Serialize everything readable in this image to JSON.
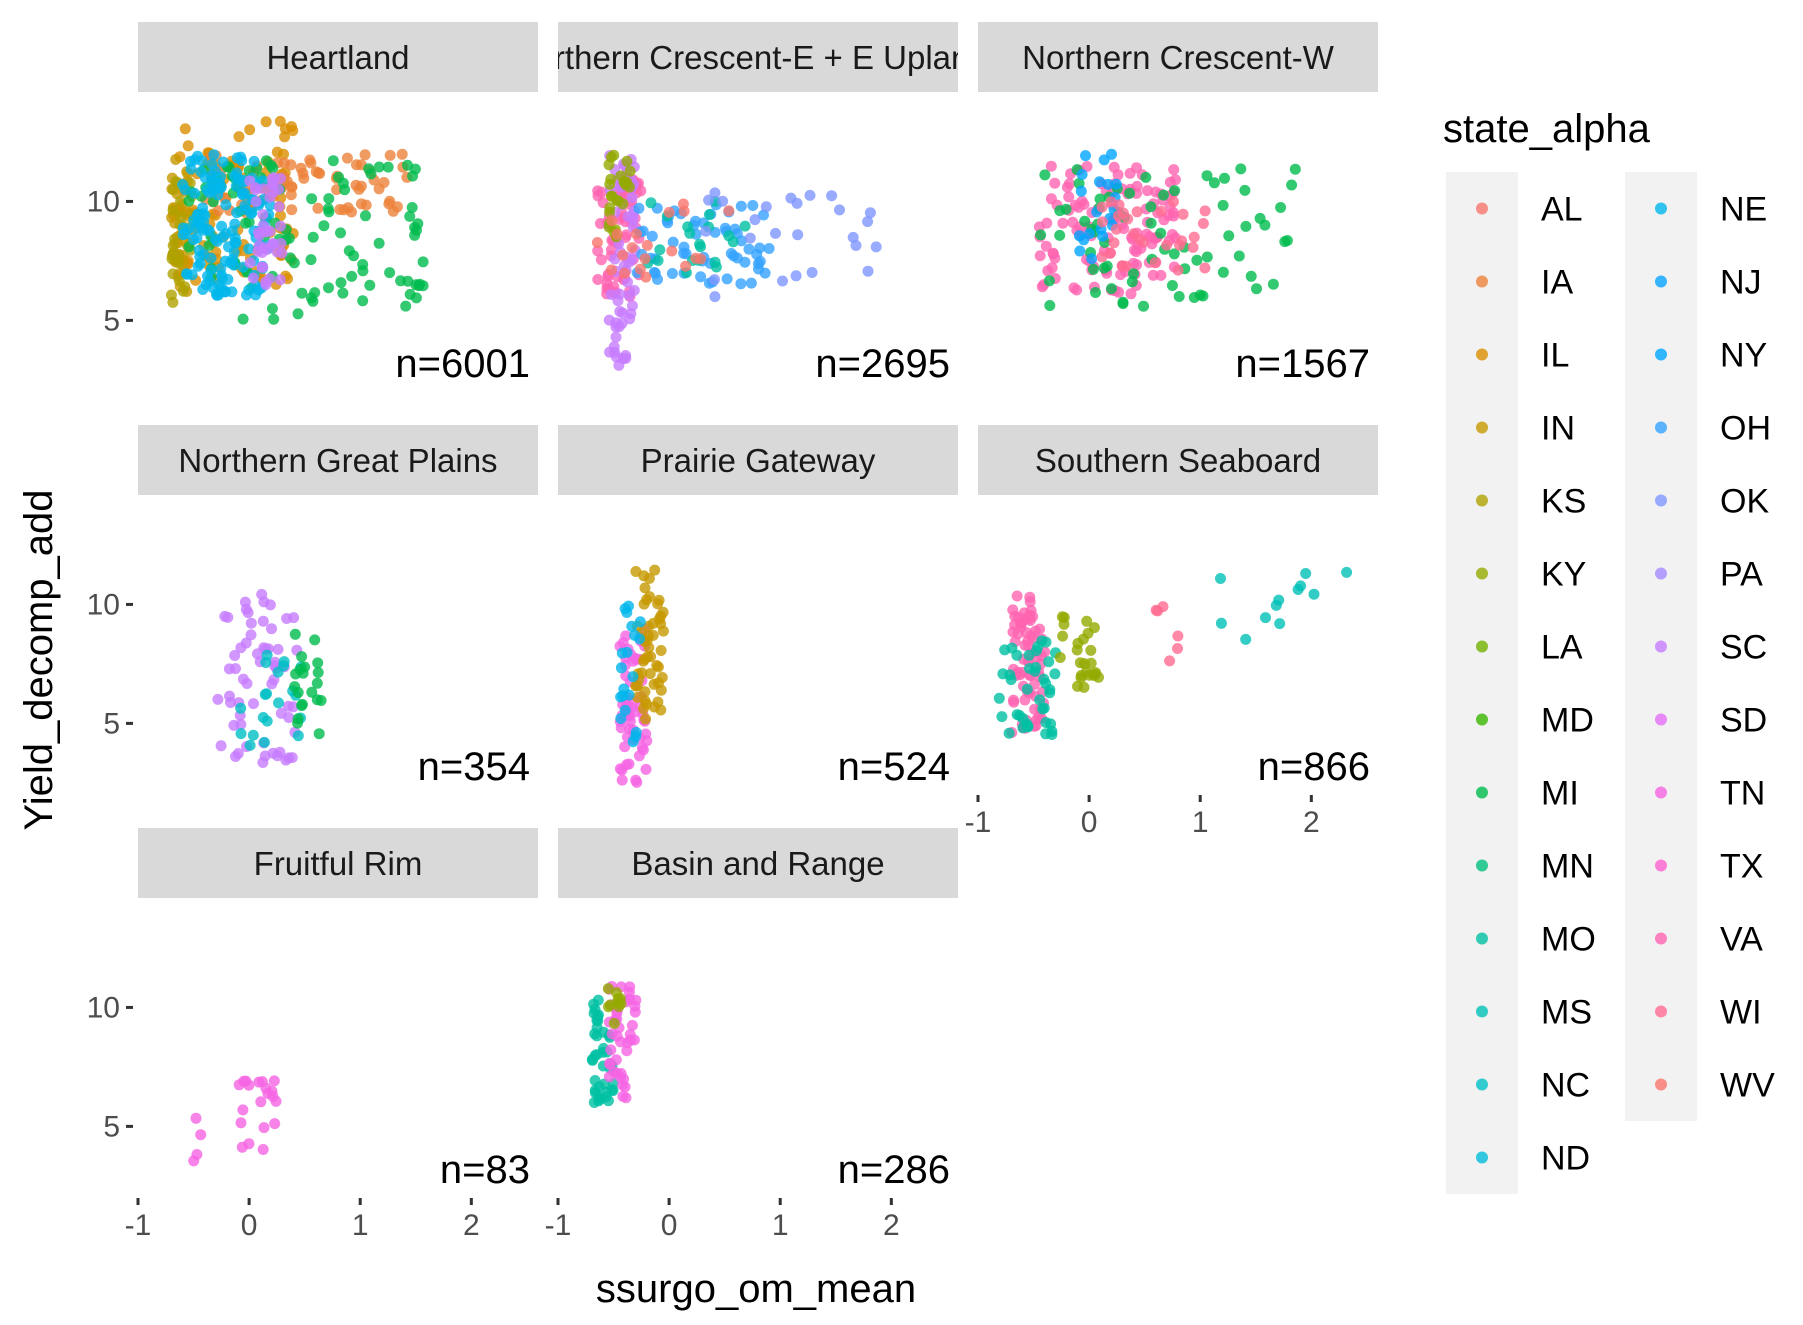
{
  "chart_data": {
    "type": "scatter",
    "xlabel": "ssurgo_om_mean",
    "ylabel": "Yield_decomp_add",
    "xlim": [
      -1,
      2.6
    ],
    "ylim": [
      2.2,
      14.6
    ],
    "x_ticks": [
      -1,
      0,
      1,
      2
    ],
    "y_ticks": [
      5,
      10
    ],
    "grid": false,
    "legend": {
      "title": "state_alpha",
      "position": "right",
      "entries": [
        {
          "name": "AL",
          "color": "#F8766D"
        },
        {
          "name": "IA",
          "color": "#EC8239"
        },
        {
          "name": "IL",
          "color": "#DB8E00"
        },
        {
          "name": "IN",
          "color": "#C79800"
        },
        {
          "name": "KS",
          "color": "#AFA100"
        },
        {
          "name": "KY",
          "color": "#93AA00"
        },
        {
          "name": "LA",
          "color": "#72B000"
        },
        {
          "name": "MD",
          "color": "#39B600"
        },
        {
          "name": "MI",
          "color": "#00BB4E"
        },
        {
          "name": "MN",
          "color": "#00BF7D"
        },
        {
          "name": "MO",
          "color": "#00C1A3"
        },
        {
          "name": "MS",
          "color": "#00C0B8"
        },
        {
          "name": "NC",
          "color": "#00BFC4"
        },
        {
          "name": "ND",
          "color": "#00BCD8"
        },
        {
          "name": "NE",
          "color": "#00B6EB"
        },
        {
          "name": "NJ",
          "color": "#06A4FF"
        },
        {
          "name": "NY",
          "color": "#00A5FF"
        },
        {
          "name": "OH",
          "color": "#35A2FF"
        },
        {
          "name": "OK",
          "color": "#7E96FF"
        },
        {
          "name": "PA",
          "color": "#A58AFF"
        },
        {
          "name": "SC",
          "color": "#C77CFF"
        },
        {
          "name": "SD",
          "color": "#E36EF6"
        },
        {
          "name": "TN",
          "color": "#F564E3"
        },
        {
          "name": "TX",
          "color": "#FD61D1"
        },
        {
          "name": "VA",
          "color": "#FF64B0"
        },
        {
          "name": "WI",
          "color": "#FF6C91"
        },
        {
          "name": "WV",
          "color": "#F8766D"
        }
      ]
    },
    "facets": [
      {
        "title": "Heartland",
        "n_label": "n=6001",
        "clusters": [
          {
            "color": "#DB8E00",
            "x": [
              -0.65,
              0.4
            ],
            "y": [
              6.5,
              13.5
            ],
            "count": 110
          },
          {
            "color": "#EC8239",
            "x": [
              -0.4,
              1.5
            ],
            "y": [
              9.5,
              12
            ],
            "count": 70
          },
          {
            "color": "#C79800",
            "x": [
              -0.7,
              -0.55
            ],
            "y": [
              6,
              12
            ],
            "count": 40
          },
          {
            "color": "#AFA100",
            "x": [
              -0.7,
              -0.5
            ],
            "y": [
              5.5,
              11
            ],
            "count": 25
          },
          {
            "color": "#00BB4E",
            "x": [
              -0.55,
              1.6
            ],
            "y": [
              5,
              12
            ],
            "count": 100
          },
          {
            "color": "#00B6EB",
            "x": [
              -0.6,
              0.2
            ],
            "y": [
              6,
              12
            ],
            "count": 140
          },
          {
            "color": "#C77CFF",
            "x": [
              0.0,
              0.3
            ],
            "y": [
              6.5,
              11
            ],
            "count": 40
          }
        ]
      },
      {
        "title": "Northern Crescent-E + E Uplands",
        "n_label": "n=2695",
        "clusters": [
          {
            "color": "#FF64B0",
            "x": [
              -0.65,
              -0.25
            ],
            "y": [
              6,
              11
            ],
            "count": 60
          },
          {
            "color": "#C77CFF",
            "x": [
              -0.55,
              -0.3
            ],
            "y": [
              3,
              12
            ],
            "count": 60
          },
          {
            "color": "#93AA00",
            "x": [
              -0.55,
              -0.35
            ],
            "y": [
              8.5,
              12
            ],
            "count": 25
          },
          {
            "color": "#35A2FF",
            "x": [
              -0.3,
              0.9
            ],
            "y": [
              6.5,
              10
            ],
            "count": 60
          },
          {
            "color": "#00C1A3",
            "x": [
              -0.2,
              0.7
            ],
            "y": [
              7,
              10
            ],
            "count": 20
          },
          {
            "color": "#7E96FF",
            "x": [
              0.3,
              1.9
            ],
            "y": [
              6,
              10.5
            ],
            "count": 25
          },
          {
            "color": "#F8766D",
            "x": [
              -0.65,
              0.6
            ],
            "y": [
              6.5,
              10
            ],
            "count": 20
          }
        ]
      },
      {
        "title": "Northern Crescent-W",
        "n_label": "n=1567",
        "clusters": [
          {
            "color": "#FF64B0",
            "x": [
              -0.45,
              0.8
            ],
            "y": [
              6,
              11.5
            ],
            "count": 120
          },
          {
            "color": "#00BB4E",
            "x": [
              -0.45,
              1.9
            ],
            "y": [
              5.5,
              11.5
            ],
            "count": 70
          },
          {
            "color": "#00A5FF",
            "x": [
              -0.1,
              0.3
            ],
            "y": [
              7.5,
              12
            ],
            "count": 20
          },
          {
            "color": "#FF6C91",
            "x": [
              0.1,
              1.2
            ],
            "y": [
              7,
              10
            ],
            "count": 30
          }
        ]
      },
      {
        "title": "Northern Great Plains",
        "n_label": "n=354",
        "clusters": [
          {
            "color": "#C77CFF",
            "x": [
              -0.3,
              0.45
            ],
            "y": [
              3,
              10.5
            ],
            "count": 60
          },
          {
            "color": "#00BFC4",
            "x": [
              -0.1,
              0.5
            ],
            "y": [
              4,
              8
            ],
            "count": 20
          },
          {
            "color": "#00BB4E",
            "x": [
              0.4,
              0.65
            ],
            "y": [
              4.5,
              9
            ],
            "count": 20
          }
        ]
      },
      {
        "title": "Prairie Gateway",
        "n_label": "n=524",
        "clusters": [
          {
            "color": "#F564E3",
            "x": [
              -0.45,
              -0.2
            ],
            "y": [
              2.5,
              9
            ],
            "count": 60
          },
          {
            "color": "#C79800",
            "x": [
              -0.3,
              -0.05
            ],
            "y": [
              5,
              11.5
            ],
            "count": 50
          },
          {
            "color": "#00B6EB",
            "x": [
              -0.45,
              -0.25
            ],
            "y": [
              4,
              10
            ],
            "count": 20
          }
        ]
      },
      {
        "title": "Southern Seaboard",
        "n_label": "n=866",
        "clusters": [
          {
            "color": "#FF64B0",
            "x": [
              -0.7,
              -0.4
            ],
            "y": [
              4.5,
              10.5
            ],
            "count": 70
          },
          {
            "color": "#00C1A3",
            "x": [
              -0.85,
              -0.3
            ],
            "y": [
              4.5,
              8.5
            ],
            "count": 40
          },
          {
            "color": "#93AA00",
            "x": [
              -0.3,
              0.1
            ],
            "y": [
              6.5,
              9.5
            ],
            "count": 25
          },
          {
            "color": "#FF6C91",
            "x": [
              0.6,
              0.8
            ],
            "y": [
              7.5,
              10
            ],
            "count": 6
          },
          {
            "color": "#00C0B8",
            "x": [
              1.05,
              2.5
            ],
            "y": [
              8,
              11.5
            ],
            "count": 12
          }
        ]
      },
      {
        "title": "Fruitful Rim",
        "n_label": "n=83",
        "clusters": [
          {
            "color": "#F564E3",
            "x": [
              -0.1,
              0.25
            ],
            "y": [
              3,
              7.5
            ],
            "count": 20
          },
          {
            "color": "#F564E3",
            "x": [
              -0.5,
              -0.4
            ],
            "y": [
              3.5,
              5.5
            ],
            "count": 4
          }
        ]
      },
      {
        "title": "Basin and Range",
        "n_label": "n=286",
        "clusters": [
          {
            "color": "#00C1A3",
            "x": [
              -0.7,
              -0.5
            ],
            "y": [
              6,
              10.5
            ],
            "count": 40
          },
          {
            "color": "#F564E3",
            "x": [
              -0.55,
              -0.3
            ],
            "y": [
              5.5,
              11
            ],
            "count": 40
          },
          {
            "color": "#93AA00",
            "x": [
              -0.55,
              -0.4
            ],
            "y": [
              9,
              11
            ],
            "count": 10
          }
        ]
      }
    ]
  }
}
